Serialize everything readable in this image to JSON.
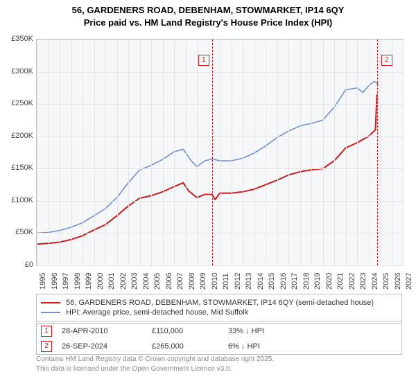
{
  "title_line1": "56, GARDENERS ROAD, DEBENHAM, STOWMARKET, IP14 6QY",
  "title_line2": "Price paid vs. HM Land Registry's House Price Index (HPI)",
  "chart": {
    "type": "line",
    "background_color": "#f6f7f8",
    "grid_color": "#e3e6e8",
    "border_color": "#c0c4c8",
    "xlim": [
      1995,
      2027
    ],
    "ylim": [
      0,
      350000
    ],
    "ytick_step": 50000,
    "ytick_labels": [
      "£0",
      "£50K",
      "£100K",
      "£150K",
      "£200K",
      "£250K",
      "£300K",
      "£350K"
    ],
    "xtick_step": 1,
    "xtick_labels": [
      "1995",
      "1996",
      "1997",
      "1998",
      "1999",
      "2000",
      "2001",
      "2002",
      "2003",
      "2004",
      "2005",
      "2006",
      "2007",
      "2008",
      "2009",
      "2010",
      "2011",
      "2012",
      "2013",
      "2014",
      "2015",
      "2016",
      "2017",
      "2018",
      "2019",
      "2020",
      "2021",
      "2022",
      "2023",
      "2024",
      "2025",
      "2026",
      "2027"
    ],
    "series": [
      {
        "name": "price_paid",
        "color": "#cf1b1b",
        "line_width": 2,
        "label": "56, GARDENERS ROAD, DEBENHAM, STOWMARKET, IP14 6QY (semi-detached house)",
        "data": [
          [
            1995,
            33000
          ],
          [
            1996,
            34000
          ],
          [
            1997,
            36000
          ],
          [
            1998,
            40000
          ],
          [
            1999,
            46000
          ],
          [
            2000,
            55000
          ],
          [
            2001,
            63000
          ],
          [
            2002,
            77000
          ],
          [
            2003,
            92000
          ],
          [
            2004,
            104000
          ],
          [
            2005,
            108000
          ],
          [
            2006,
            114000
          ],
          [
            2007,
            122000
          ],
          [
            2007.8,
            128000
          ],
          [
            2008.3,
            115000
          ],
          [
            2009,
            105000
          ],
          [
            2009.7,
            110000
          ],
          [
            2010.32,
            110000
          ],
          [
            2010.6,
            102000
          ],
          [
            2011,
            112000
          ],
          [
            2012,
            112000
          ],
          [
            2013,
            114000
          ],
          [
            2014,
            118000
          ],
          [
            2015,
            125000
          ],
          [
            2016,
            132000
          ],
          [
            2017,
            140000
          ],
          [
            2018,
            145000
          ],
          [
            2019,
            148000
          ],
          [
            2020,
            150000
          ],
          [
            2021,
            162000
          ],
          [
            2022,
            182000
          ],
          [
            2023,
            190000
          ],
          [
            2024,
            200000
          ],
          [
            2024.6,
            210000
          ],
          [
            2024.74,
            265000
          ]
        ]
      },
      {
        "name": "hpi",
        "color": "#6f8fcf",
        "line_width": 1.6,
        "label": "HPI: Average price, semi-detached house, Mid Suffolk",
        "data": [
          [
            1995,
            50000
          ],
          [
            1996,
            51000
          ],
          [
            1997,
            54000
          ],
          [
            1998,
            59000
          ],
          [
            1999,
            66000
          ],
          [
            2000,
            77000
          ],
          [
            2001,
            88000
          ],
          [
            2002,
            105000
          ],
          [
            2003,
            128000
          ],
          [
            2004,
            148000
          ],
          [
            2005,
            155000
          ],
          [
            2006,
            164000
          ],
          [
            2007,
            176000
          ],
          [
            2007.8,
            180000
          ],
          [
            2008.5,
            162000
          ],
          [
            2009,
            153000
          ],
          [
            2009.7,
            162000
          ],
          [
            2010.32,
            165000
          ],
          [
            2011,
            162000
          ],
          [
            2012,
            162000
          ],
          [
            2013,
            166000
          ],
          [
            2014,
            174000
          ],
          [
            2015,
            185000
          ],
          [
            2016,
            198000
          ],
          [
            2017,
            208000
          ],
          [
            2018,
            216000
          ],
          [
            2019,
            220000
          ],
          [
            2020,
            225000
          ],
          [
            2021,
            245000
          ],
          [
            2022,
            272000
          ],
          [
            2023,
            275000
          ],
          [
            2023.5,
            268000
          ],
          [
            2024,
            278000
          ],
          [
            2024.5,
            285000
          ],
          [
            2024.9,
            280000
          ]
        ]
      }
    ],
    "sale_markers": [
      {
        "id": "1",
        "x": 2010.32,
        "date": "28-APR-2010",
        "price": "£110,000",
        "vs_hpi": "33% ↓ HPI"
      },
      {
        "id": "2",
        "x": 2024.74,
        "date": "26-SEP-2024",
        "price": "£265,000",
        "vs_hpi": "6% ↓ HPI"
      }
    ]
  },
  "legend_title_price": "56, GARDENERS ROAD, DEBENHAM, STOWMARKET, IP14 6QY (semi-detached house)",
  "legend_title_hpi": "HPI: Average price, semi-detached house, Mid Suffolk",
  "footer_line1": "Contains HM Land Registry data © Crown copyright and database right 2025.",
  "footer_line2": "This data is licensed under the Open Government Licence v3.0."
}
